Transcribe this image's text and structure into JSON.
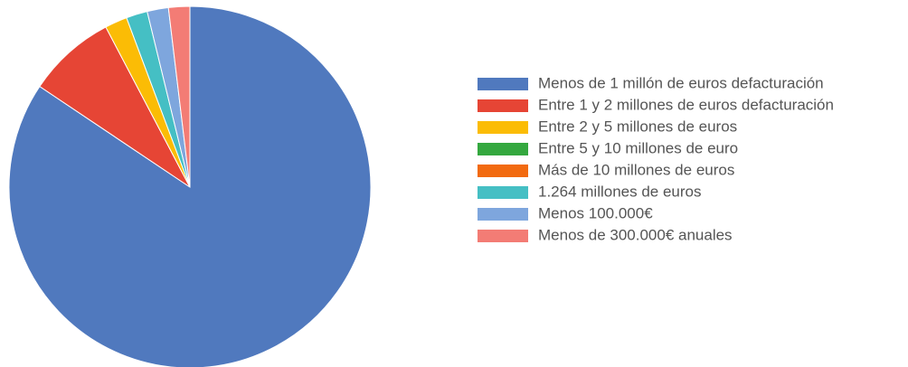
{
  "chart_data": {
    "type": "pie",
    "categories": [
      "Menos de 1 millón de euros defacturación",
      "Entre 1 y 2 millones de euros defacturación",
      "Entre 2 y 5 millones de euros",
      "Entre 5 y 10 millones de euro",
      "Más de 10 millones de euros",
      "1.264 millones de euros",
      "Menos 100.000€",
      "Menos de 300.000€ anuales"
    ],
    "values": [
      84.4,
      7.9,
      2,
      0,
      0,
      1.9,
      1.9,
      1.9
    ],
    "colors": [
      "#5079be",
      "#e64535",
      "#fbbc05",
      "#34a83f",
      "#f26a10",
      "#45bfc4",
      "#7ea6dd",
      "#f37c75"
    ],
    "legend": "right"
  }
}
